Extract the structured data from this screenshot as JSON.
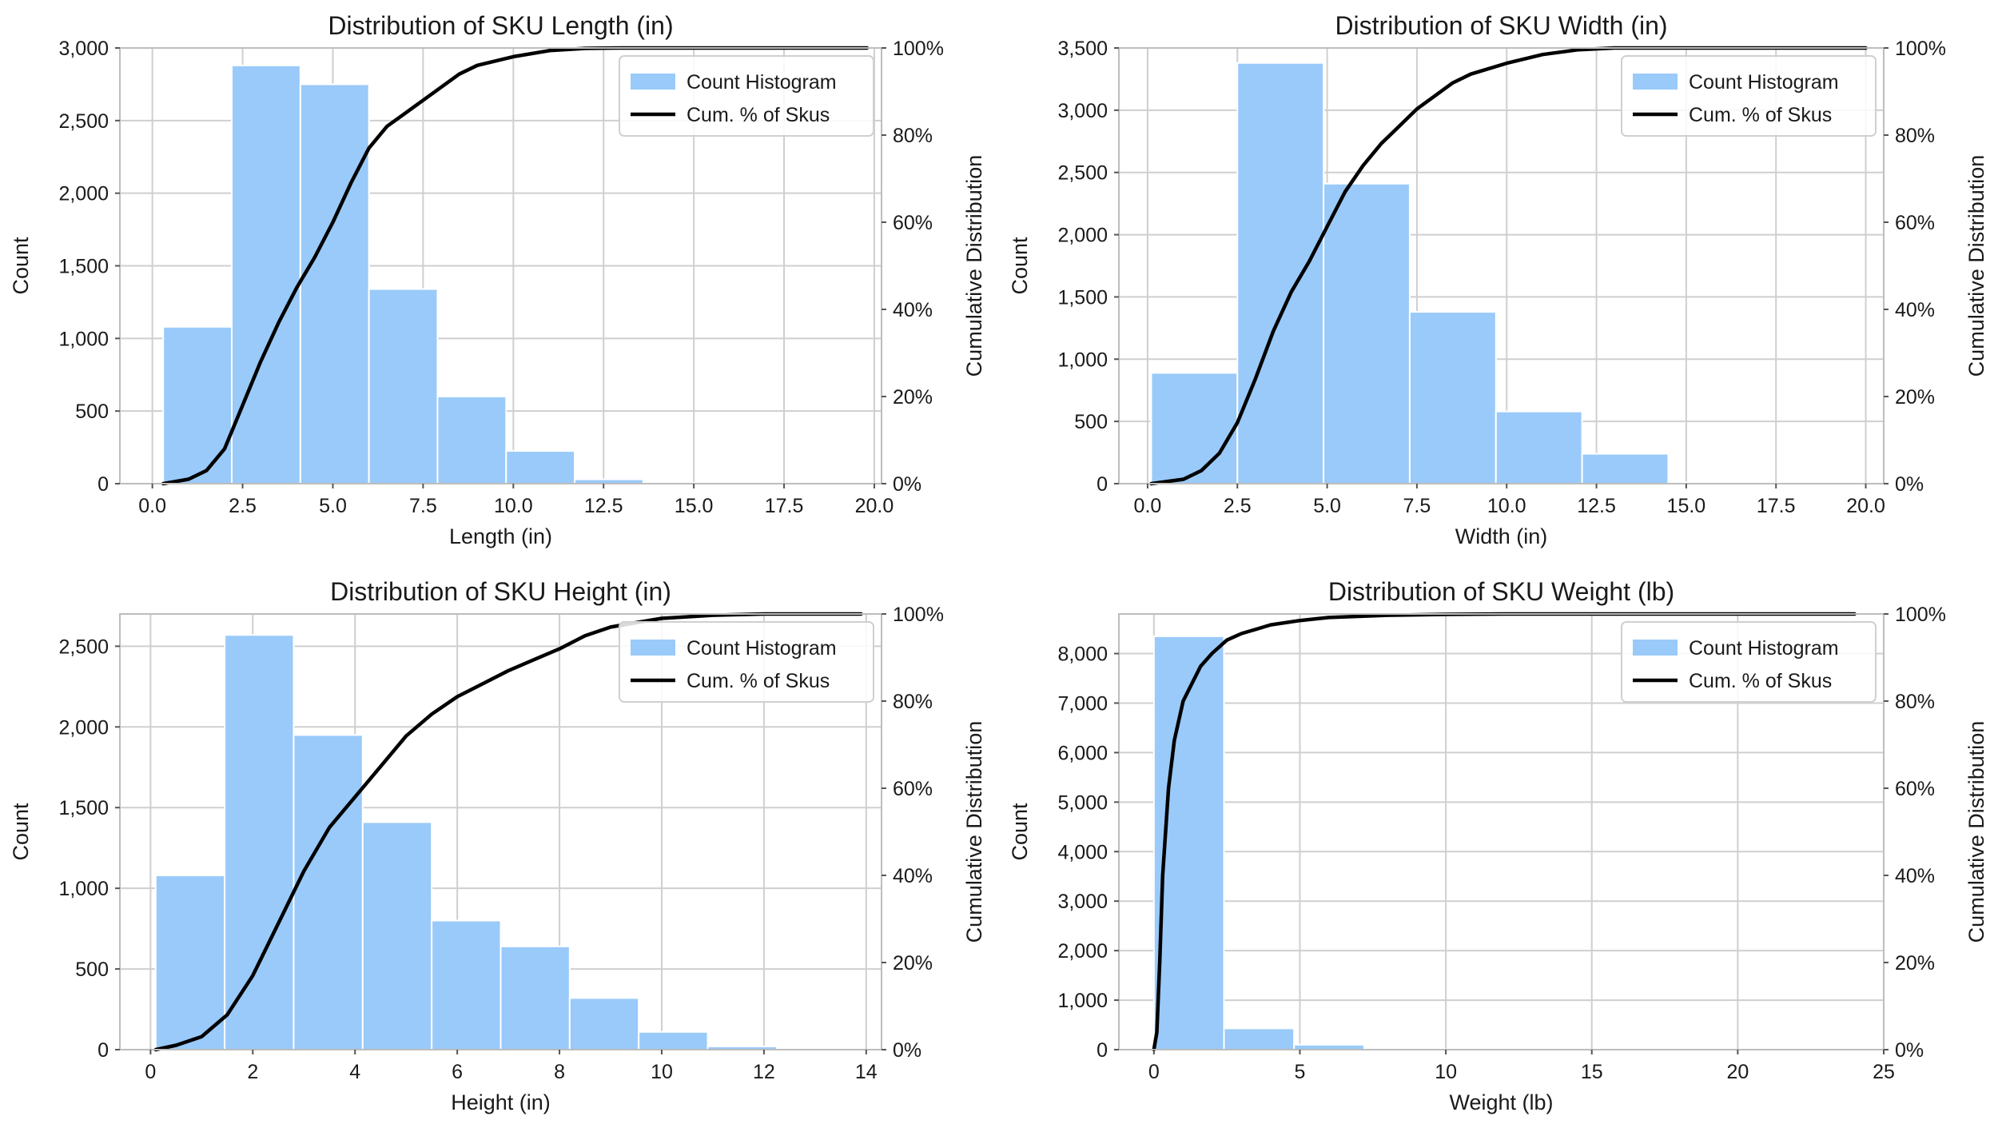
{
  "figure": {
    "background": "#ffffff"
  },
  "chart_data": [
    {
      "type": "bar",
      "title": "Distribution of SKU Length (in)",
      "xlabel": "Length (in)",
      "ylabel": "Count",
      "y2label": "Cumulative Distribution",
      "xlim": [
        -0.9,
        20.2
      ],
      "ylim": [
        0,
        3000
      ],
      "xticks": [
        0.0,
        2.5,
        5.0,
        7.5,
        10.0,
        12.5,
        15.0,
        17.5,
        20.0
      ],
      "xtick_labels": [
        "0.0",
        "2.5",
        "5.0",
        "7.5",
        "10.0",
        "12.5",
        "15.0",
        "17.5",
        "20.0"
      ],
      "yticks": [
        0,
        500,
        1000,
        1500,
        2000,
        2500,
        3000
      ],
      "ytick_labels": [
        "0",
        "500",
        "1,000",
        "1,500",
        "2,000",
        "2,500",
        "3,000"
      ],
      "y2ticks": [
        0,
        20,
        40,
        60,
        80,
        100
      ],
      "y2tick_labels": [
        "0%",
        "20%",
        "40%",
        "60%",
        "80%",
        "100%"
      ],
      "bins": [
        {
          "x0": 0.3,
          "x1": 2.2,
          "count": 1080
        },
        {
          "x0": 2.2,
          "x1": 4.1,
          "count": 2880
        },
        {
          "x0": 4.1,
          "x1": 6.0,
          "count": 2750
        },
        {
          "x0": 6.0,
          "x1": 7.9,
          "count": 1340
        },
        {
          "x0": 7.9,
          "x1": 9.8,
          "count": 600
        },
        {
          "x0": 9.8,
          "x1": 11.7,
          "count": 225
        },
        {
          "x0": 11.7,
          "x1": 13.6,
          "count": 30
        },
        {
          "x0": 13.6,
          "x1": 15.5,
          "count": 5
        },
        {
          "x0": 15.5,
          "x1": 17.4,
          "count": 2
        },
        {
          "x0": 17.4,
          "x1": 19.3,
          "count": 1
        }
      ],
      "cumulative": {
        "x": [
          0.3,
          1.0,
          1.5,
          2.0,
          2.5,
          3.0,
          3.5,
          4.0,
          4.5,
          5.0,
          5.5,
          6.0,
          6.5,
          7.0,
          7.5,
          8.0,
          8.5,
          9.0,
          10.0,
          11.0,
          12.0,
          13.0,
          19.8
        ],
        "y": [
          0,
          1,
          3,
          8,
          18,
          28,
          37,
          45,
          52,
          60,
          69,
          77,
          82,
          85,
          88,
          91,
          94,
          96,
          98,
          99.4,
          99.9,
          100,
          100
        ]
      },
      "legend": {
        "bar_label": "Count Histogram",
        "line_label": "Cum. % of Skus",
        "location": "upper right"
      },
      "colors": {
        "bar": "#99caf9",
        "line": "#000000"
      }
    },
    {
      "type": "bar",
      "title": "Distribution of SKU Width (in)",
      "xlabel": "Width (in)",
      "ylabel": "Count",
      "y2label": "Cumulative Distribution",
      "xlim": [
        -0.8,
        20.5
      ],
      "ylim": [
        0,
        3500
      ],
      "xticks": [
        0.0,
        2.5,
        5.0,
        7.5,
        10.0,
        12.5,
        15.0,
        17.5,
        20.0
      ],
      "xtick_labels": [
        "0.0",
        "2.5",
        "5.0",
        "7.5",
        "10.0",
        "12.5",
        "15.0",
        "17.5",
        "20.0"
      ],
      "yticks": [
        0,
        500,
        1000,
        1500,
        2000,
        2500,
        3000,
        3500
      ],
      "ytick_labels": [
        "0",
        "500",
        "1,000",
        "1,500",
        "2,000",
        "2,500",
        "3,000",
        "3,500"
      ],
      "y2ticks": [
        0,
        20,
        40,
        60,
        80,
        100
      ],
      "y2tick_labels": [
        "0%",
        "20%",
        "40%",
        "60%",
        "80%",
        "100%"
      ],
      "bins": [
        {
          "x0": 0.1,
          "x1": 2.5,
          "count": 890
        },
        {
          "x0": 2.5,
          "x1": 4.9,
          "count": 3380
        },
        {
          "x0": 4.9,
          "x1": 7.3,
          "count": 2410
        },
        {
          "x0": 7.3,
          "x1": 9.7,
          "count": 1380
        },
        {
          "x0": 9.7,
          "x1": 12.1,
          "count": 580
        },
        {
          "x0": 12.1,
          "x1": 14.5,
          "count": 240
        },
        {
          "x0": 14.5,
          "x1": 16.9,
          "count": 10
        },
        {
          "x0": 16.9,
          "x1": 19.3,
          "count": 3
        }
      ],
      "cumulative": {
        "x": [
          0.1,
          1.0,
          1.5,
          2.0,
          2.5,
          3.0,
          3.5,
          4.0,
          4.5,
          5.0,
          5.5,
          6.0,
          6.5,
          7.0,
          7.5,
          8.0,
          8.5,
          9.0,
          10.0,
          11.0,
          12.0,
          13.0,
          20.0
        ],
        "y": [
          0,
          1,
          3,
          7,
          14,
          24,
          35,
          44,
          51,
          59,
          67,
          73,
          78,
          82,
          86,
          89,
          92,
          94,
          96.5,
          98.5,
          99.6,
          100,
          100
        ]
      },
      "legend": {
        "bar_label": "Count Histogram",
        "line_label": "Cum. % of Skus",
        "location": "upper right"
      },
      "colors": {
        "bar": "#99caf9",
        "line": "#000000"
      }
    },
    {
      "type": "bar",
      "title": "Distribution of SKU Height (in)",
      "xlabel": "Height (in)",
      "ylabel": "Count",
      "y2label": "Cumulative Distribution",
      "xlim": [
        -0.6,
        14.3
      ],
      "ylim": [
        0,
        2700
      ],
      "xticks": [
        0,
        2,
        4,
        6,
        8,
        10,
        12,
        14
      ],
      "xtick_labels": [
        "0",
        "2",
        "4",
        "6",
        "8",
        "10",
        "12",
        "14"
      ],
      "yticks": [
        0,
        500,
        1000,
        1500,
        2000,
        2500
      ],
      "ytick_labels": [
        "0",
        "500",
        "1,000",
        "1,500",
        "2,000",
        "2,500"
      ],
      "y2ticks": [
        0,
        20,
        40,
        60,
        80,
        100
      ],
      "y2tick_labels": [
        "0%",
        "20%",
        "40%",
        "60%",
        "80%",
        "100%"
      ],
      "bins": [
        {
          "x0": 0.1,
          "x1": 1.45,
          "count": 1080
        },
        {
          "x0": 1.45,
          "x1": 2.8,
          "count": 2570
        },
        {
          "x0": 2.8,
          "x1": 4.15,
          "count": 1950
        },
        {
          "x0": 4.15,
          "x1": 5.5,
          "count": 1410
        },
        {
          "x0": 5.5,
          "x1": 6.85,
          "count": 800
        },
        {
          "x0": 6.85,
          "x1": 8.2,
          "count": 640
        },
        {
          "x0": 8.2,
          "x1": 9.55,
          "count": 320
        },
        {
          "x0": 9.55,
          "x1": 10.9,
          "count": 110
        },
        {
          "x0": 10.9,
          "x1": 12.25,
          "count": 20
        },
        {
          "x0": 12.25,
          "x1": 13.6,
          "count": 3
        }
      ],
      "cumulative": {
        "x": [
          0.1,
          0.5,
          1.0,
          1.5,
          2.0,
          2.5,
          3.0,
          3.5,
          4.0,
          4.5,
          5.0,
          5.5,
          6.0,
          6.5,
          7.0,
          7.5,
          8.0,
          8.5,
          9.0,
          9.5,
          10.0,
          11.0,
          12.0,
          13.9
        ],
        "y": [
          0,
          1,
          3,
          8,
          17,
          29,
          41,
          51,
          58,
          65,
          72,
          77,
          81,
          84,
          87,
          89.5,
          92,
          95,
          97,
          98,
          99,
          99.7,
          100,
          100
        ]
      },
      "legend": {
        "bar_label": "Count Histogram",
        "line_label": "Cum. % of Skus",
        "location": "upper right"
      },
      "colors": {
        "bar": "#99caf9",
        "line": "#000000"
      }
    },
    {
      "type": "bar",
      "title": "Distribution of SKU Weight (lb)",
      "xlabel": "Weight (lb)",
      "ylabel": "Count",
      "y2label": "Cumulative Distribution",
      "xlim": [
        -1.2,
        25.0
      ],
      "ylim": [
        0,
        8800
      ],
      "xticks": [
        0,
        5,
        10,
        15,
        20,
        25
      ],
      "xtick_labels": [
        "0",
        "5",
        "10",
        "15",
        "20",
        "25"
      ],
      "yticks": [
        0,
        1000,
        2000,
        3000,
        4000,
        5000,
        6000,
        7000,
        8000
      ],
      "ytick_labels": [
        "0",
        "1,000",
        "2,000",
        "3,000",
        "4,000",
        "5,000",
        "6,000",
        "7,000",
        "8,000"
      ],
      "y2ticks": [
        0,
        20,
        40,
        60,
        80,
        100
      ],
      "y2tick_labels": [
        "0%",
        "20%",
        "40%",
        "60%",
        "80%",
        "100%"
      ],
      "bins": [
        {
          "x0": 0.0,
          "x1": 2.4,
          "count": 8350
        },
        {
          "x0": 2.4,
          "x1": 4.8,
          "count": 430
        },
        {
          "x0": 4.8,
          "x1": 7.2,
          "count": 100
        },
        {
          "x0": 7.2,
          "x1": 9.6,
          "count": 15
        },
        {
          "x0": 9.6,
          "x1": 12.0,
          "count": 5
        }
      ],
      "cumulative": {
        "x": [
          0.0,
          0.1,
          0.2,
          0.3,
          0.5,
          0.7,
          1.0,
          1.3,
          1.6,
          2.0,
          2.5,
          3.0,
          3.5,
          4.0,
          5.0,
          6.0,
          8.0,
          10.0,
          12.0,
          24.0
        ],
        "y": [
          0,
          4,
          20,
          40,
          60,
          71,
          80,
          84,
          88,
          91,
          94,
          95.5,
          96.5,
          97.5,
          98.5,
          99.2,
          99.7,
          99.9,
          100,
          100
        ]
      },
      "legend": {
        "bar_label": "Count Histogram",
        "line_label": "Cum. % of Skus",
        "location": "upper right"
      },
      "colors": {
        "bar": "#99caf9",
        "line": "#000000"
      }
    }
  ]
}
